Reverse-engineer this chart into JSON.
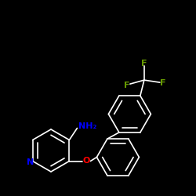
{
  "background_color": "#000000",
  "bond_color": "#ffffff",
  "atom_colors": {
    "N_pyridine": "#0000ff",
    "NH2": "#0000ff",
    "O": "#ff0000",
    "F": "#669900",
    "C": "#ffffff"
  },
  "figsize": [
    2.5,
    2.5
  ],
  "dpi": 100,
  "lw": 1.2
}
